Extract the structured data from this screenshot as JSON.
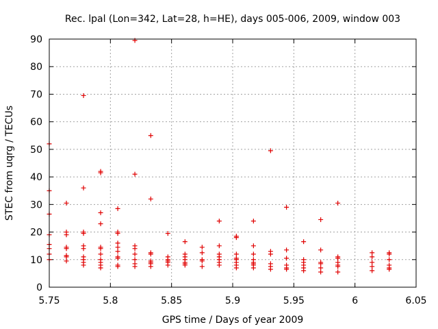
{
  "chart_data": {
    "type": "scatter",
    "title": "Rec. lpal (Lon=342, Lat=28, h=HE), days 005-006, 2009, window 003",
    "xlabel": "GPS time / Days of year 2009",
    "ylabel": "STEC from uqrg / TECUs",
    "xlim": [
      5.75,
      6.05
    ],
    "ylim": [
      0,
      90
    ],
    "xticks": [
      5.75,
      5.8,
      5.85,
      5.9,
      5.95,
      6,
      6.05
    ],
    "xtick_labels": [
      "5.75",
      "5.8",
      "5.85",
      "5.9",
      "5.95",
      "6",
      "6.05"
    ],
    "yticks": [
      0,
      10,
      20,
      30,
      40,
      50,
      60,
      70,
      80,
      90
    ],
    "ytick_labels": [
      "0",
      "10",
      "20",
      "30",
      "40",
      "50",
      "60",
      "70",
      "80",
      "90"
    ],
    "grid": true,
    "marker": "+",
    "color": "#e00000",
    "series": [
      {
        "name": "STEC",
        "points": [
          [
            5.75,
            52
          ],
          [
            5.75,
            35
          ],
          [
            5.75,
            26.5
          ],
          [
            5.75,
            19
          ],
          [
            5.75,
            15.5
          ],
          [
            5.75,
            14
          ],
          [
            5.75,
            12
          ],
          [
            5.75,
            10
          ],
          [
            5.764,
            30.5
          ],
          [
            5.764,
            20
          ],
          [
            5.764,
            19
          ],
          [
            5.764,
            14.5
          ],
          [
            5.764,
            14
          ],
          [
            5.764,
            11.5
          ],
          [
            5.764,
            11
          ],
          [
            5.764,
            9.5
          ],
          [
            5.778,
            69.5
          ],
          [
            5.778,
            36
          ],
          [
            5.778,
            20
          ],
          [
            5.778,
            19.5
          ],
          [
            5.778,
            15
          ],
          [
            5.778,
            14
          ],
          [
            5.778,
            11
          ],
          [
            5.778,
            10
          ],
          [
            5.778,
            9
          ],
          [
            5.778,
            8
          ],
          [
            5.792,
            42
          ],
          [
            5.792,
            41.5
          ],
          [
            5.792,
            27
          ],
          [
            5.792,
            23
          ],
          [
            5.792,
            14.5
          ],
          [
            5.792,
            14
          ],
          [
            5.792,
            12
          ],
          [
            5.792,
            10
          ],
          [
            5.792,
            9
          ],
          [
            5.792,
            8
          ],
          [
            5.792,
            7
          ],
          [
            5.806,
            28.5
          ],
          [
            5.806,
            20
          ],
          [
            5.806,
            19.5
          ],
          [
            5.806,
            16
          ],
          [
            5.806,
            14.5
          ],
          [
            5.806,
            13
          ],
          [
            5.806,
            11
          ],
          [
            5.806,
            10.5
          ],
          [
            5.806,
            8
          ],
          [
            5.806,
            7.5
          ],
          [
            5.82,
            89.5
          ],
          [
            5.82,
            41
          ],
          [
            5.82,
            15
          ],
          [
            5.82,
            14
          ],
          [
            5.82,
            12
          ],
          [
            5.82,
            10
          ],
          [
            5.82,
            8.5
          ],
          [
            5.82,
            7.5
          ],
          [
            5.833,
            55
          ],
          [
            5.833,
            32
          ],
          [
            5.833,
            12.5
          ],
          [
            5.833,
            12
          ],
          [
            5.833,
            9.5
          ],
          [
            5.833,
            9
          ],
          [
            5.833,
            8.5
          ],
          [
            5.833,
            7.5
          ],
          [
            5.847,
            19.5
          ],
          [
            5.847,
            11
          ],
          [
            5.847,
            10
          ],
          [
            5.847,
            9.5
          ],
          [
            5.847,
            9
          ],
          [
            5.847,
            8
          ],
          [
            5.861,
            16.5
          ],
          [
            5.861,
            12
          ],
          [
            5.861,
            11
          ],
          [
            5.861,
            10
          ],
          [
            5.861,
            9
          ],
          [
            5.861,
            8.5
          ],
          [
            5.861,
            8
          ],
          [
            5.875,
            14.5
          ],
          [
            5.875,
            12.5
          ],
          [
            5.875,
            10
          ],
          [
            5.875,
            9.5
          ],
          [
            5.875,
            7.5
          ],
          [
            5.889,
            24
          ],
          [
            5.889,
            15
          ],
          [
            5.889,
            12
          ],
          [
            5.889,
            11
          ],
          [
            5.889,
            10
          ],
          [
            5.889,
            9
          ],
          [
            5.889,
            8
          ],
          [
            5.903,
            18.5
          ],
          [
            5.903,
            18
          ],
          [
            5.903,
            12
          ],
          [
            5.903,
            10.5
          ],
          [
            5.903,
            10
          ],
          [
            5.903,
            9
          ],
          [
            5.903,
            8
          ],
          [
            5.903,
            7
          ],
          [
            5.917,
            24
          ],
          [
            5.917,
            15
          ],
          [
            5.917,
            12
          ],
          [
            5.917,
            10
          ],
          [
            5.917,
            9
          ],
          [
            5.917,
            8.5
          ],
          [
            5.917,
            8
          ],
          [
            5.917,
            7
          ],
          [
            5.931,
            49.5
          ],
          [
            5.931,
            13
          ],
          [
            5.931,
            12
          ],
          [
            5.931,
            8.5
          ],
          [
            5.931,
            7.5
          ],
          [
            5.931,
            6.5
          ],
          [
            5.944,
            29
          ],
          [
            5.944,
            13.5
          ],
          [
            5.944,
            10.5
          ],
          [
            5.944,
            8
          ],
          [
            5.944,
            7
          ],
          [
            5.944,
            6.5
          ],
          [
            5.958,
            16.5
          ],
          [
            5.958,
            10
          ],
          [
            5.958,
            9
          ],
          [
            5.958,
            8
          ],
          [
            5.958,
            7
          ],
          [
            5.958,
            6
          ],
          [
            5.972,
            24.5
          ],
          [
            5.972,
            13.5
          ],
          [
            5.972,
            9
          ],
          [
            5.972,
            8.5
          ],
          [
            5.972,
            7
          ],
          [
            5.972,
            5.5
          ],
          [
            5.986,
            30.5
          ],
          [
            5.986,
            11
          ],
          [
            5.986,
            10.5
          ],
          [
            5.986,
            9
          ],
          [
            5.986,
            8
          ],
          [
            5.986,
            7.5
          ],
          [
            5.986,
            5.5
          ],
          [
            6.014,
            12.5
          ],
          [
            6.014,
            11
          ],
          [
            6.014,
            9
          ],
          [
            6.014,
            7.5
          ],
          [
            6.014,
            6
          ],
          [
            6.028,
            12.5
          ],
          [
            6.028,
            12
          ],
          [
            6.028,
            10
          ],
          [
            6.028,
            8
          ],
          [
            6.028,
            7
          ],
          [
            6.028,
            6.5
          ]
        ]
      }
    ]
  }
}
